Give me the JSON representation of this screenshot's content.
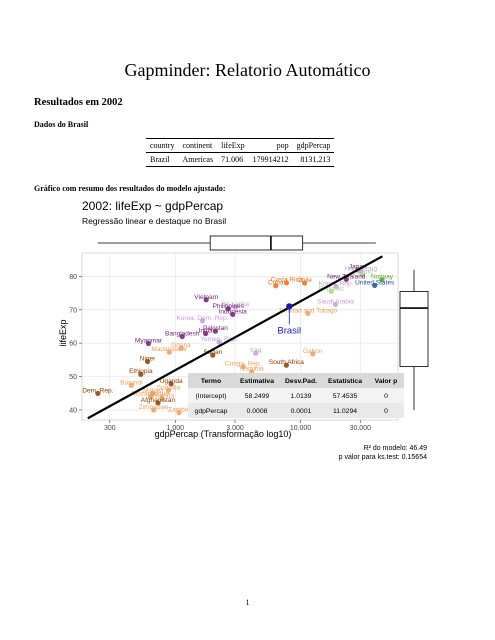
{
  "document": {
    "title": "Gapminder: Relatorio Automático",
    "section_heading": "Resultados em 2002",
    "subsection_heading": "Dados do Brasil",
    "figure_caption": "Gráfico com resumo dos resultados do modelo ajustado:",
    "page_number": "1"
  },
  "brazil_table": {
    "headers": [
      "country",
      "continent",
      "lifeExp",
      "pop",
      "gdpPercap"
    ],
    "row": [
      "Brazil",
      "Americas",
      "71.006",
      "179914212",
      "8131.213"
    ]
  },
  "chart_data": {
    "type": "scatter",
    "title": "2002: lifeExp ~ gdpPercap",
    "subtitle": "Regressão linear e destaque no Brasil",
    "xlabel": "gdpPercap (Transformação log10)",
    "ylabel": "lifeExp",
    "x_scale": "log10",
    "xlim": [
      180,
      60000
    ],
    "ylim": [
      37,
      87
    ],
    "x_ticks": [
      300,
      1000,
      3000,
      10000,
      30000
    ],
    "x_tick_labels": [
      "300",
      "1.000",
      "3.000",
      "10.000",
      "30.000"
    ],
    "y_ticks": [
      40,
      50,
      60,
      70,
      80
    ],
    "y_tick_labels": [
      "40",
      "50",
      "60",
      "70",
      "80"
    ],
    "grid": true,
    "regression_line": {
      "intercept": 58.2499,
      "slope": 0.0008,
      "x_from": 200,
      "x_to": 45000,
      "y_from": 37.5,
      "y_to": 86
    },
    "top_boxplot_gdp": {
      "min": 240,
      "q1": 1900,
      "median": 5800,
      "q3": 10400,
      "max": 40000
    },
    "right_boxplot_lifeexp": {
      "min": 40,
      "q1": 53,
      "median": 70.5,
      "q3": 75.5,
      "max": 82
    },
    "highlight": {
      "label": "Brasil",
      "x": 8131.213,
      "y": 71.006,
      "color": "#1a1ab0"
    },
    "points": [
      {
        "label": "Japan",
        "x": 28605,
        "y": 82.0,
        "color": "#6b1e6e"
      },
      {
        "label": "Hong Kong",
        "x": 30209,
        "y": 81.5,
        "color": "#c59ed6"
      },
      {
        "label": "Iceland",
        "x": 31163,
        "y": 80.5,
        "color": "#a8d08d"
      },
      {
        "label": "New Zealand",
        "x": 23189,
        "y": 79.1,
        "color": "#6b1e6e"
      },
      {
        "label": "Norway",
        "x": 44683,
        "y": 79.0,
        "color": "#5aa02c"
      },
      {
        "label": "Korea, Rep.",
        "x": 19234,
        "y": 77.0,
        "color": "#c59ed6"
      },
      {
        "label": "United States",
        "x": 39097,
        "y": 77.3,
        "color": "#1f4e9a"
      },
      {
        "label": "Chile",
        "x": 10779,
        "y": 78.0,
        "color": "#e07020"
      },
      {
        "label": "Cuba",
        "x": 6341,
        "y": 77.2,
        "color": "#e07020"
      },
      {
        "label": "Costa Rica",
        "x": 7723,
        "y": 78.1,
        "color": "#e07020"
      },
      {
        "label": "Sri Lanka",
        "x": 3015,
        "y": 70.8,
        "color": "#c59ed6"
      },
      {
        "label": "Vietnam",
        "x": 1764,
        "y": 73.0,
        "color": "#6b1e6e"
      },
      {
        "label": "Republic",
        "x": 17596,
        "y": 75.5,
        "color": "#a8d08d"
      },
      {
        "label": "Saudi Arabia",
        "x": 19014,
        "y": 71.6,
        "color": "#c59ed6"
      },
      {
        "label": "Philippines",
        "x": 2650,
        "y": 70.3,
        "color": "#6b1e6e"
      },
      {
        "label": "Indonesia",
        "x": 2874,
        "y": 68.6,
        "color": "#6b1e6e"
      },
      {
        "label": "Trinidad and Tobago",
        "x": 11461,
        "y": 68.9,
        "color": "#e8a060"
      },
      {
        "label": "Korea, Dem. Rep.",
        "x": 1647,
        "y": 66.7,
        "color": "#c59ed6"
      },
      {
        "label": "Pakistan",
        "x": 2092,
        "y": 63.6,
        "color": "#6b1e6e"
      },
      {
        "label": "India",
        "x": 1747,
        "y": 62.9,
        "color": "#6b1e6e"
      },
      {
        "label": "Bangladesh",
        "x": 1136,
        "y": 62.0,
        "color": "#6b1e6e"
      },
      {
        "label": "Yemen, Rep.",
        "x": 2235,
        "y": 60.3,
        "color": "#c59ed6"
      },
      {
        "label": "Myanmar",
        "x": 611,
        "y": 59.9,
        "color": "#6b1e6e"
      },
      {
        "label": "Madagascar",
        "x": 895,
        "y": 57.3,
        "color": "#e8a060"
      },
      {
        "label": "Ghana",
        "x": 1112,
        "y": 58.5,
        "color": "#e8a060"
      },
      {
        "label": "Sudan",
        "x": 1993,
        "y": 56.4,
        "color": "#8a3d00"
      },
      {
        "label": "Iraq",
        "x": 4391,
        "y": 57.0,
        "color": "#c59ed6"
      },
      {
        "label": "Gabon",
        "x": 12522,
        "y": 56.8,
        "color": "#e8a060"
      },
      {
        "label": "Niger",
        "x": 601,
        "y": 54.5,
        "color": "#8a3d00"
      },
      {
        "label": "Congo, Rep.",
        "x": 3484,
        "y": 52.97,
        "color": "#e8a060"
      },
      {
        "label": "South Africa",
        "x": 7711,
        "y": 53.4,
        "color": "#8a3d00"
      },
      {
        "label": "Namibia",
        "x": 4072,
        "y": 51.5,
        "color": "#e8a060"
      },
      {
        "label": "Ethiopia",
        "x": 531,
        "y": 50.7,
        "color": "#8a3d00"
      },
      {
        "label": "Burundi",
        "x": 446,
        "y": 47.4,
        "color": "#e8a060"
      },
      {
        "label": "Uganda",
        "x": 928,
        "y": 47.8,
        "color": "#8a3d00"
      },
      {
        "label": "Somalia",
        "x": 882,
        "y": 45.9,
        "color": "#e8a060"
      },
      {
        "label": "Malawi",
        "x": 665,
        "y": 45.0,
        "color": "#e8a060"
      },
      {
        "label": "Mozambique",
        "x": 633,
        "y": 44.0,
        "color": "#e8a060"
      },
      {
        "label": "Afghanistan",
        "x": 727,
        "y": 42.1,
        "color": "#8a3d00"
      },
      {
        "label": "Zimbabwe",
        "x": 672,
        "y": 40.0,
        "color": "#e8a060"
      },
      {
        "label": "Zambia",
        "x": 1071,
        "y": 39.2,
        "color": "#e8a060"
      },
      {
        "label": "Dem. Rep.",
        "x": 241,
        "y": 44.96,
        "color": "#8a3d00"
      },
      {
        "label": "Rwanda",
        "x": 785,
        "y": 43.4,
        "color": "#e8a060"
      },
      {
        "label": "land",
        "x": 4128,
        "y": 43.9,
        "color": "#e8a060"
      }
    ],
    "regression_table": {
      "headers": [
        "Termo",
        "Estimativa",
        "Desv.Pad.",
        "Estatística",
        "Valor p"
      ],
      "rows": [
        [
          "(Intercept)",
          "58.2499",
          "1.0139",
          "57.4535",
          "0"
        ],
        [
          "gdpPercap",
          "0.0008",
          "0.0001",
          "11.0294",
          "0"
        ]
      ]
    },
    "annotations": [
      "R² do modelo: 46.49",
      "p valor para ks.test: 0.15654"
    ]
  }
}
